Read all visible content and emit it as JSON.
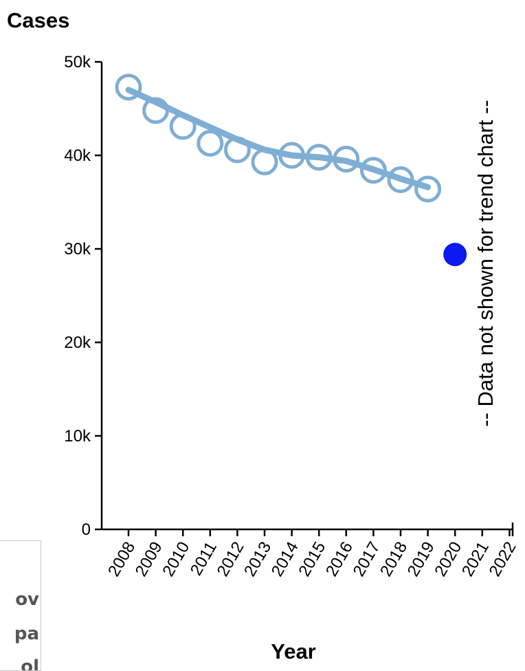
{
  "chart_data": {
    "type": "line",
    "ylabel": "Cases",
    "xlabel": "Year",
    "ylim": [
      0,
      50000
    ],
    "yticks": [
      0,
      10000,
      20000,
      30000,
      40000,
      50000
    ],
    "ytick_labels": [
      "0",
      "10k",
      "20k",
      "30k",
      "40k",
      "50k"
    ],
    "xticks": [
      "2008",
      "2009",
      "2010",
      "2011",
      "2012",
      "2013",
      "2014",
      "2015",
      "2016",
      "2017",
      "2018",
      "2019",
      "2020",
      "2021",
      "2022"
    ],
    "series": [
      {
        "x": [
          "2008",
          "2009",
          "2010",
          "2011",
          "2012",
          "2013",
          "2014",
          "2015",
          "2016",
          "2017",
          "2018",
          "2019"
        ],
        "values": [
          47300,
          44800,
          43100,
          41300,
          40600,
          39300,
          40000,
          39800,
          39600,
          38400,
          37400,
          36400
        ],
        "trend": [
          47000,
          45700,
          44300,
          43000,
          41700,
          40600,
          40000,
          39800,
          39400,
          38500,
          37500,
          36600
        ],
        "color": "#7faed4",
        "marker": "open-circle"
      },
      {
        "x": [
          "2020"
        ],
        "values": [
          29400
        ],
        "color": "#0a1af0",
        "marker": "filled-circle"
      }
    ],
    "annotation": "-- Data not shown for trend chart --",
    "grid": false
  },
  "side_panel": {
    "fragments": [
      "ov",
      "pa",
      "ol"
    ]
  }
}
